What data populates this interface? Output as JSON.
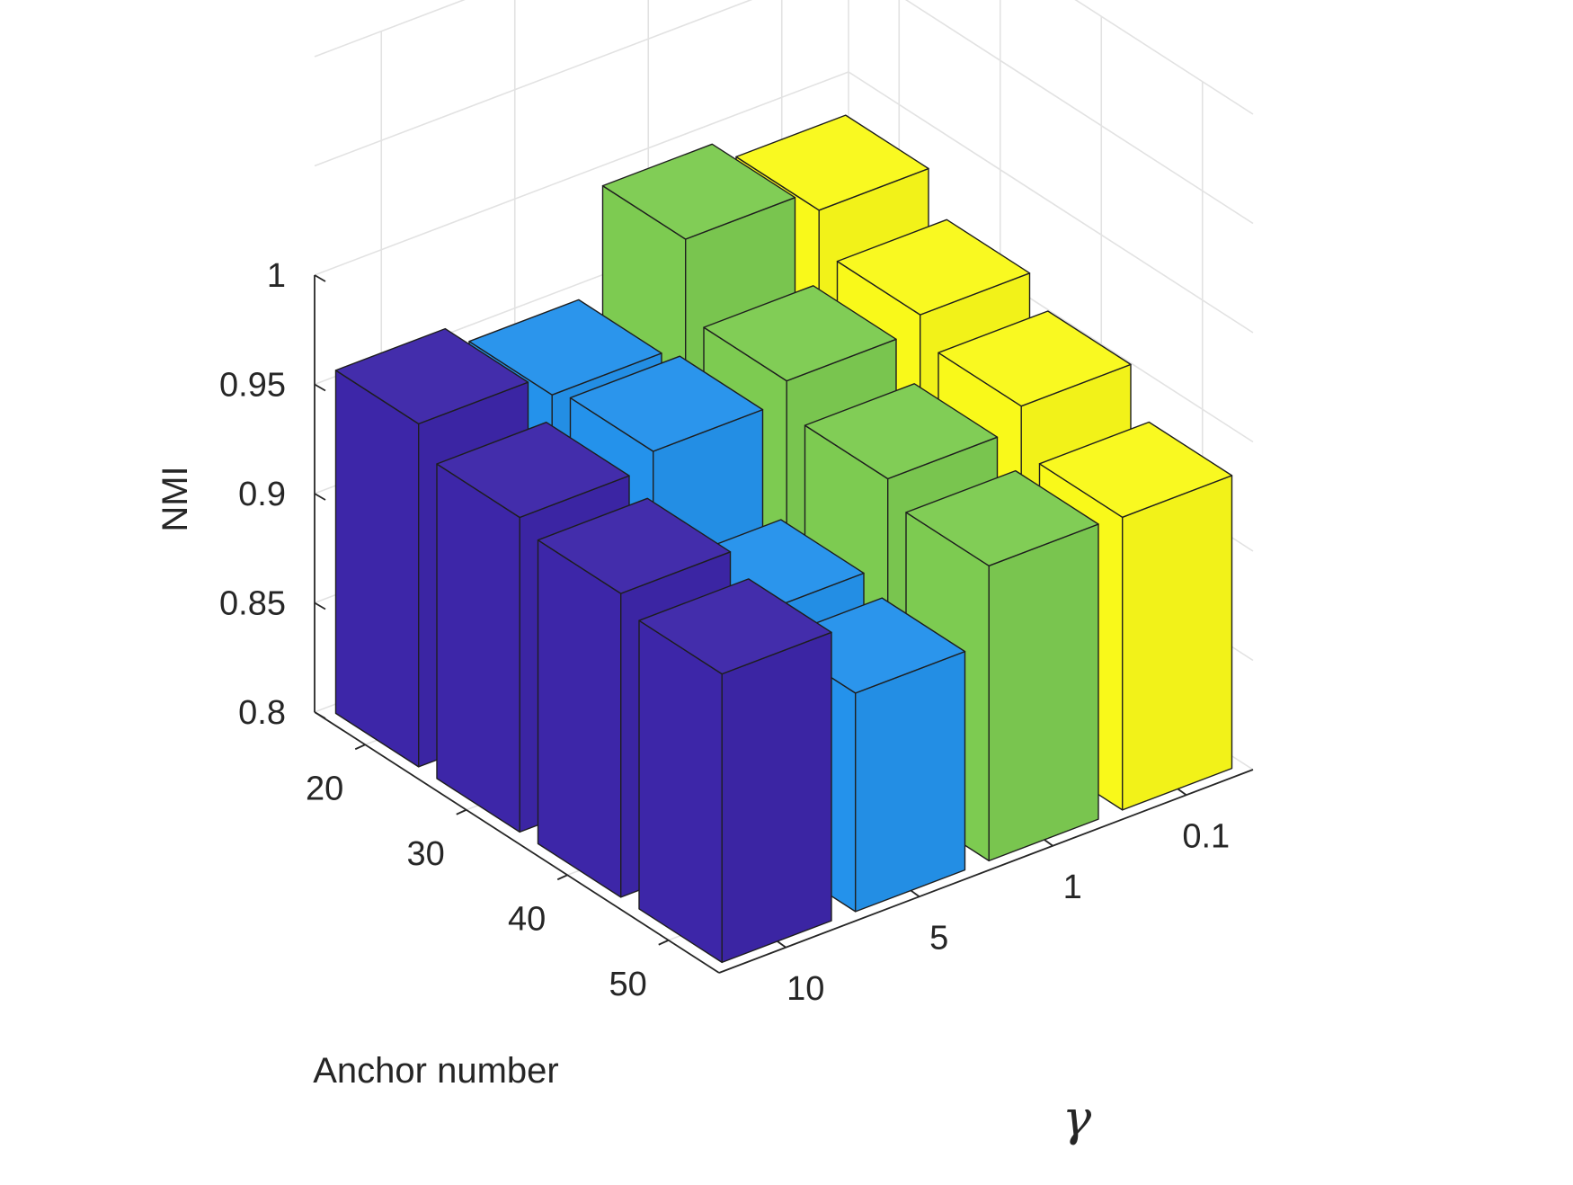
{
  "chart_data": {
    "type": "bar3d",
    "zlabel": "NMI",
    "xlabel": "Anchor number",
    "ylabel": "γ",
    "zlim": [
      0.8,
      1
    ],
    "z_ticks": [
      "0.8",
      "0.85",
      "0.9",
      "0.95",
      "1"
    ],
    "anchor_numbers": [
      "20",
      "30",
      "40",
      "50"
    ],
    "gamma_values": [
      "10",
      "5",
      "1",
      "0.1"
    ],
    "series_colors": [
      "#3D26A8",
      "#2492EB",
      "#7DCB51",
      "#F9F91A"
    ],
    "series": [
      {
        "gamma": "10",
        "values": [
          0.957,
          0.944,
          0.939,
          0.932
        ]
      },
      {
        "gamma": "5",
        "values": [
          0.947,
          0.951,
          0.906,
          0.9
        ]
      },
      {
        "gamma": "1",
        "values": [
          0.995,
          0.96,
          0.945,
          0.935
        ]
      },
      {
        "gamma": "0.1",
        "values": [
          0.985,
          0.967,
          0.955,
          0.934
        ]
      }
    ]
  }
}
